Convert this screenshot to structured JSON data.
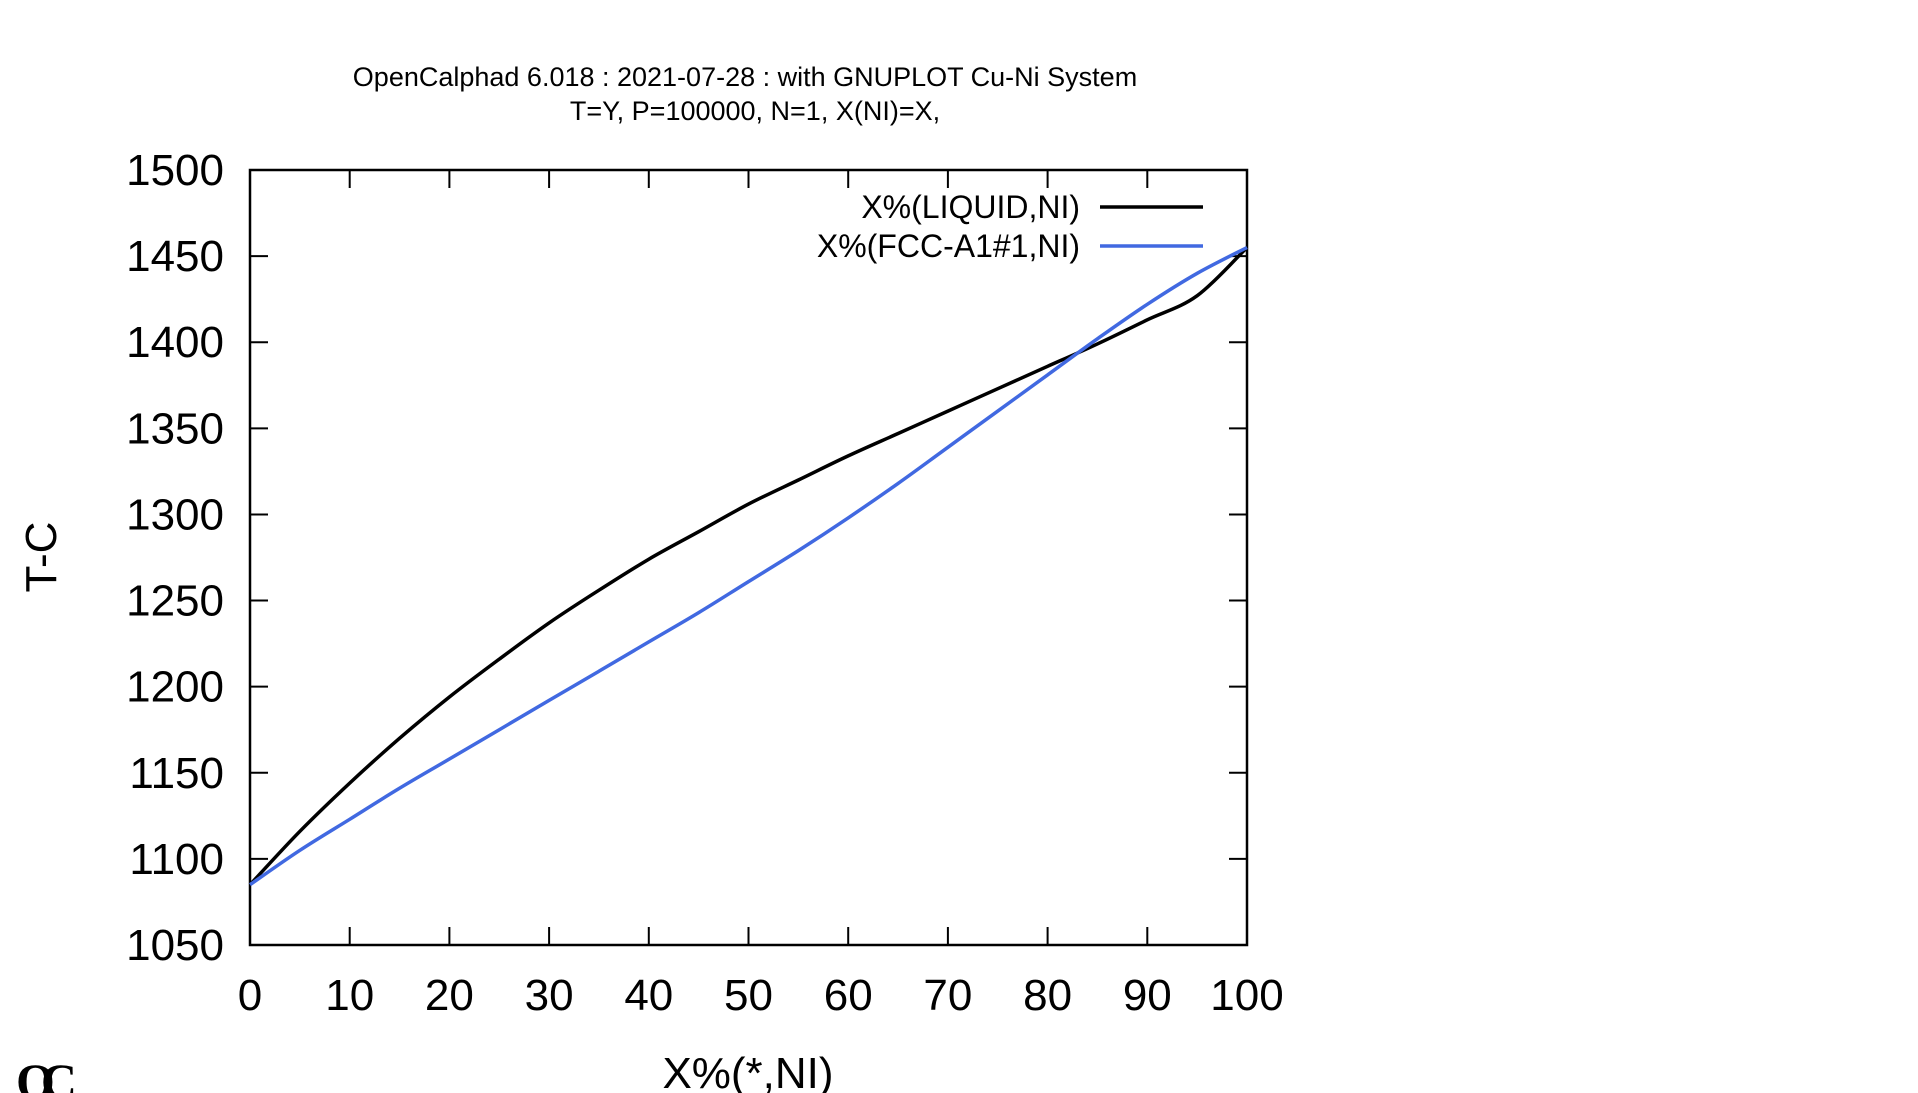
{
  "chart_data": {
    "type": "line",
    "title": "OpenCalphad   6.018 :  2021-07-28 : with GNUPLOT Cu-Ni System",
    "subtitle": "T=Y,  P=100000, N=1, X(NI)=X,",
    "xlabel": "X%(*,NI)",
    "ylabel": "T-C",
    "xlim": [
      0,
      100
    ],
    "ylim": [
      1050,
      1500
    ],
    "xticks": [
      0,
      10,
      20,
      30,
      40,
      50,
      60,
      70,
      80,
      90,
      100
    ],
    "yticks": [
      1050,
      1100,
      1150,
      1200,
      1250,
      1300,
      1350,
      1400,
      1450,
      1500
    ],
    "grid": false,
    "legend_position": "top-right",
    "series": [
      {
        "name": "X%(LIQUID,NI)",
        "color": "#000000",
        "x": [
          0,
          5,
          10,
          15,
          20,
          25,
          30,
          35,
          40,
          45,
          50,
          55,
          60,
          65,
          70,
          75,
          80,
          85,
          90,
          95,
          100
        ],
        "y": [
          1085,
          1116,
          1144,
          1170,
          1194,
          1216,
          1237,
          1256,
          1274,
          1290,
          1306,
          1320,
          1334,
          1347,
          1360,
          1373,
          1386,
          1399,
          1413,
          1427,
          1455
        ]
      },
      {
        "name": "X%(FCC-A1#1,NI)",
        "color": "#4169e1",
        "x": [
          0,
          5,
          10,
          15,
          20,
          25,
          30,
          35,
          40,
          45,
          50,
          55,
          60,
          65,
          70,
          75,
          80,
          85,
          90,
          95,
          100
        ],
        "y": [
          1085,
          1105,
          1123,
          1141,
          1158,
          1175,
          1192,
          1209,
          1226,
          1243,
          1261,
          1279,
          1298,
          1318,
          1339,
          1360,
          1381,
          1402,
          1422,
          1440,
          1455
        ]
      }
    ]
  },
  "logo": {
    "text": "OC"
  }
}
